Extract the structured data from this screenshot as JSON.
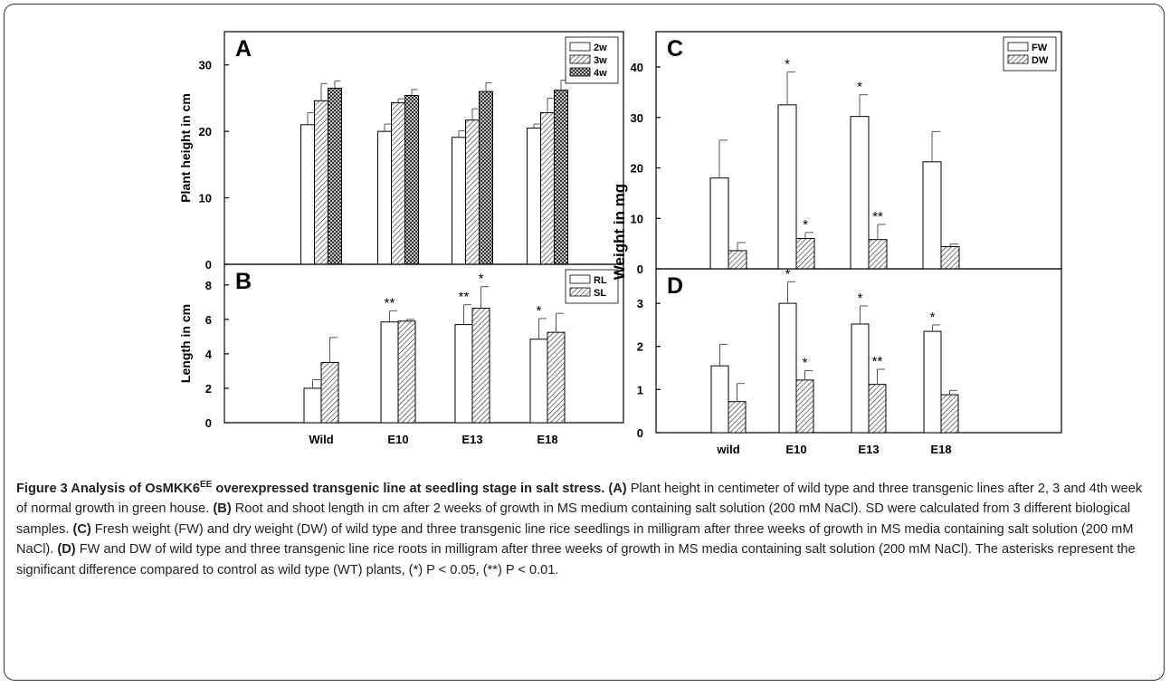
{
  "colors": {
    "axis": "#000000",
    "bar_fill": "#ffffff",
    "text": "#000000"
  },
  "chart_data": [
    {
      "panel": "A",
      "type": "bar",
      "ylabel": "Plant height in cm",
      "xlabel": "",
      "ylim": [
        0,
        35
      ],
      "yticks": [
        0,
        10,
        20,
        30
      ],
      "categories": [
        "Wild",
        "E10",
        "E13",
        "E18"
      ],
      "show_xticks": false,
      "legend": "top-right",
      "series": [
        {
          "name": "2w",
          "pattern": "none",
          "values": [
            21.0,
            20.0,
            19.1,
            20.5
          ],
          "errors": [
            1.8,
            1.1,
            1.0,
            0.6
          ],
          "sig": [
            "",
            "",
            "",
            ""
          ]
        },
        {
          "name": "3w",
          "pattern": "hatch",
          "values": [
            24.6,
            24.3,
            21.7,
            22.8
          ],
          "errors": [
            2.6,
            0.6,
            1.7,
            2.2
          ],
          "sig": [
            "",
            "",
            "",
            ""
          ]
        },
        {
          "name": "4w",
          "pattern": "cross",
          "values": [
            26.5,
            25.4,
            26.0,
            26.2
          ],
          "errors": [
            1.1,
            0.9,
            1.3,
            1.5
          ],
          "sig": [
            "",
            "",
            "",
            ""
          ]
        }
      ]
    },
    {
      "panel": "B",
      "type": "bar",
      "ylabel": "Length in cm",
      "xlabel": "",
      "ylim": [
        0,
        9.2
      ],
      "yticks": [
        0,
        2,
        4,
        6,
        8
      ],
      "categories": [
        "Wild",
        "E10",
        "E13",
        "E18"
      ],
      "show_xticks": true,
      "legend": "top-right",
      "series": [
        {
          "name": "RL",
          "pattern": "none",
          "values": [
            2.0,
            5.85,
            5.7,
            4.85
          ],
          "errors": [
            0.5,
            0.65,
            1.15,
            1.2
          ],
          "sig": [
            "",
            "**",
            "**",
            "*"
          ]
        },
        {
          "name": "SL",
          "pattern": "hatch",
          "values": [
            3.5,
            5.9,
            6.65,
            5.25
          ],
          "errors": [
            1.45,
            0.1,
            1.25,
            1.1
          ],
          "sig": [
            "",
            "",
            "*",
            ""
          ]
        }
      ]
    },
    {
      "panel": "C",
      "type": "bar",
      "ylabel": "",
      "xlabel": "",
      "ylim": [
        0,
        47
      ],
      "yticks": [
        0,
        10,
        20,
        30,
        40
      ],
      "categories": [
        "wild",
        "E10",
        "E13",
        "E18"
      ],
      "show_xticks": false,
      "legend": "top-right",
      "series": [
        {
          "name": "FW",
          "pattern": "none",
          "values": [
            18.0,
            32.5,
            30.2,
            21.2
          ],
          "errors": [
            7.5,
            6.5,
            4.3,
            6.0
          ],
          "sig": [
            "",
            "*",
            "*",
            ""
          ]
        },
        {
          "name": "DW",
          "pattern": "hatch",
          "values": [
            3.6,
            6.0,
            5.8,
            4.4
          ],
          "errors": [
            1.6,
            1.2,
            3.0,
            0.5
          ],
          "sig": [
            "",
            "*",
            "**",
            ""
          ]
        }
      ]
    },
    {
      "panel": "D",
      "type": "bar",
      "ylabel": "",
      "xlabel": "",
      "ylim": [
        0,
        3.8
      ],
      "yticks": [
        0,
        1,
        2,
        3
      ],
      "categories": [
        "wild",
        "E10",
        "E13",
        "E18"
      ],
      "show_xticks": true,
      "legend": "none",
      "series": [
        {
          "name": "FW",
          "pattern": "none",
          "values": [
            1.55,
            3.0,
            2.52,
            2.35
          ],
          "errors": [
            0.5,
            0.5,
            0.42,
            0.15
          ],
          "sig": [
            "",
            "*",
            "*",
            "*"
          ]
        },
        {
          "name": "DW",
          "pattern": "hatch",
          "values": [
            0.72,
            1.22,
            1.12,
            0.88
          ],
          "errors": [
            0.42,
            0.22,
            0.35,
            0.1
          ],
          "sig": [
            "",
            "*",
            "**",
            ""
          ]
        }
      ]
    }
  ],
  "shared_ylabel_right": "Weight in mg",
  "caption": {
    "title_prefix": "Figure 3 Analysis of OsMKK6",
    "title_sup": "EE",
    "title_suffix": " overexpressed transgenic line at seedling stage in salt stress.",
    "a_label": "(A)",
    "a_text": " Plant height in centimeter of wild type and three transgenic lines after 2, 3 and 4th week of normal growth in green house. ",
    "b_label": "(B)",
    "b_text": " Root and shoot length in cm after 2 weeks of growth in MS medium containing salt solution (200 mM NaCl). SD were calculated from 3 different biological samples. ",
    "c_label": "(C)",
    "c_text": " Fresh weight (FW) and dry weight (DW) of wild type and three transgenic line rice seedlings in milligram after three weeks of growth in MS media containing salt solution (200 mM NaCl). ",
    "d_label": "(D)",
    "d_text": " FW and DW of wild type and three transgenic line rice roots in milligram after three weeks of growth in MS media containing salt solution (200 mM NaCl). The asterisks represent the significant difference compared to control as wild type (WT) plants, (*) P < 0.05, (**) P < 0.01."
  }
}
